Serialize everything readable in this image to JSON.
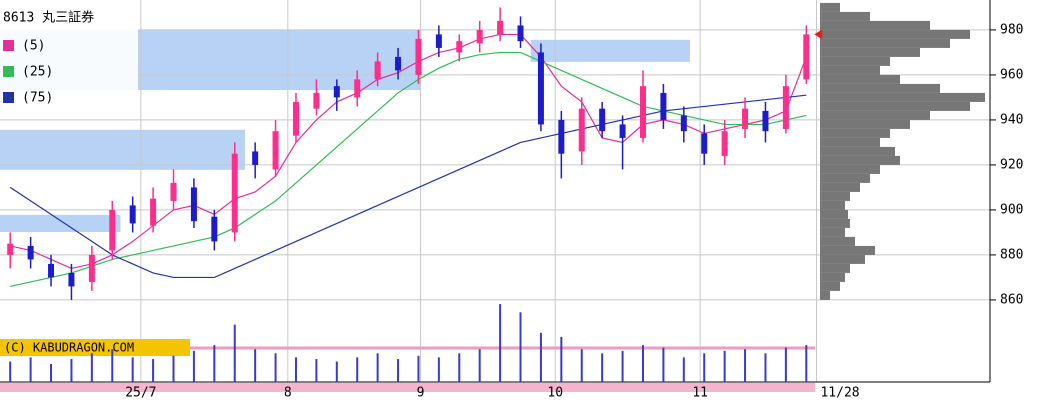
{
  "chart_data": {
    "type": "candlestick",
    "title": "8613 丸三証券",
    "watermark": "(C) KABUDRAGON.COM",
    "ylim": [
      853.3,
      993.3
    ],
    "yticks": [
      860,
      880,
      900,
      920,
      940,
      960,
      980
    ],
    "xlim": [
      -0.5,
      48
    ],
    "xticks": [
      {
        "value": 6.4,
        "label": "25/7"
      },
      {
        "value": 13.6,
        "label": "8"
      },
      {
        "value": 20.1,
        "label": "9"
      },
      {
        "value": 26.7,
        "label": "10"
      },
      {
        "value": 33.8,
        "label": "11"
      },
      {
        "value": 39.5,
        "label": "11/28"
      }
    ],
    "grid": true,
    "up_color": "#ff2d8c",
    "down_color": "#1c1ccc",
    "open": [
      880,
      884,
      876,
      872,
      868,
      882,
      902,
      893,
      904,
      910,
      897,
      890,
      926,
      918,
      933,
      945,
      955,
      950,
      958,
      968,
      960,
      978,
      970,
      974,
      978,
      982,
      970,
      940,
      926,
      945,
      938,
      932,
      952,
      942,
      934,
      924,
      936,
      944,
      936,
      958
    ],
    "high": [
      890,
      888,
      880,
      876,
      884,
      904,
      906,
      910,
      918,
      914,
      900,
      930,
      930,
      940,
      952,
      958,
      958,
      962,
      970,
      972,
      980,
      982,
      978,
      984,
      990,
      986,
      974,
      944,
      950,
      948,
      942,
      962,
      956,
      946,
      938,
      940,
      950,
      948,
      960,
      982
    ],
    "low": [
      874,
      874,
      866,
      860,
      864,
      878,
      890,
      890,
      900,
      892,
      882,
      886,
      914,
      915,
      930,
      942,
      944,
      946,
      955,
      958,
      956,
      968,
      966,
      970,
      975,
      972,
      935,
      914,
      920,
      932,
      918,
      930,
      936,
      930,
      920,
      920,
      932,
      930,
      934,
      956
    ],
    "close": [
      885,
      878,
      870,
      866,
      880,
      900,
      894,
      905,
      912,
      895,
      886,
      925,
      920,
      935,
      948,
      952,
      950,
      958,
      966,
      962,
      976,
      972,
      975,
      980,
      984,
      975,
      938,
      925,
      945,
      935,
      932,
      955,
      940,
      935,
      925,
      935,
      945,
      935,
      955,
      978
    ],
    "series": [
      {
        "name": "(5)",
        "color": "#e0309a",
        "values": [
          884,
          882,
          878,
          874,
          876,
          880,
          886,
          893,
          900,
          902,
          898,
          905,
          908,
          915,
          930,
          940,
          948,
          952,
          958,
          961,
          966,
          970,
          972,
          976,
          978,
          978,
          968,
          955,
          948,
          932,
          930,
          938,
          940,
          938,
          934,
          936,
          938,
          940,
          944,
          968
        ]
      },
      {
        "name": "(25)",
        "color": "#33bb55",
        "values": [
          866,
          868,
          870,
          872,
          875,
          878,
          880,
          882,
          884,
          886,
          888,
          892,
          898,
          904,
          912,
          920,
          928,
          936,
          944,
          952,
          958,
          963,
          967,
          969,
          970,
          970,
          966,
          962,
          958,
          954,
          950,
          946,
          944,
          942,
          940,
          938,
          938,
          938,
          940,
          942
        ]
      },
      {
        "name": "(75)",
        "color": "#2233aa",
        "values": [
          910,
          904,
          898,
          892,
          886,
          880,
          876,
          872,
          870,
          870,
          870,
          874,
          878,
          882,
          886,
          890,
          894,
          898,
          902,
          906,
          910,
          914,
          918,
          922,
          926,
          930,
          932,
          934,
          936,
          938,
          940,
          942,
          944,
          945,
          946,
          947,
          948,
          949,
          950,
          951
        ]
      }
    ],
    "volume": {
      "color": "#3a3acc",
      "ylim": [
        0,
        100
      ],
      "values": [
        25,
        30,
        22,
        28,
        35,
        40,
        30,
        28,
        32,
        38,
        45,
        70,
        40,
        35,
        30,
        28,
        25,
        30,
        35,
        28,
        32,
        30,
        35,
        40,
        95,
        85,
        60,
        55,
        40,
        35,
        38,
        45,
        42,
        30,
        35,
        38,
        40,
        35,
        42,
        45
      ]
    },
    "zones": {
      "color": "#b8d2f5",
      "items": [
        {
          "from": -0.5,
          "to": 20.1,
          "low": 953.3,
          "high": 980
        },
        {
          "from": 25.5,
          "to": 33.3,
          "low": 965.8,
          "high": 975.6
        },
        {
          "from": -0.5,
          "to": 11.5,
          "low": 917.8,
          "high": 935.6
        },
        {
          "from": -0.5,
          "to": 5.4,
          "low": 890.2,
          "high": 897.8
        }
      ]
    },
    "profile": {
      "color": "#777777",
      "bins": [
        860,
        864,
        868,
        872,
        876,
        880,
        884,
        888,
        892,
        896,
        900,
        904,
        908,
        912,
        916,
        920,
        924,
        928,
        932,
        936,
        940,
        944,
        948,
        952,
        956,
        960,
        964,
        968,
        972,
        976,
        980,
        984,
        988,
        992
      ],
      "counts": [
        10,
        20,
        25,
        30,
        45,
        55,
        35,
        25,
        30,
        28,
        25,
        30,
        40,
        50,
        60,
        80,
        75,
        60,
        70,
        90,
        110,
        150,
        165,
        120,
        80,
        60,
        70,
        100,
        130,
        150,
        110,
        50,
        20
      ]
    }
  }
}
